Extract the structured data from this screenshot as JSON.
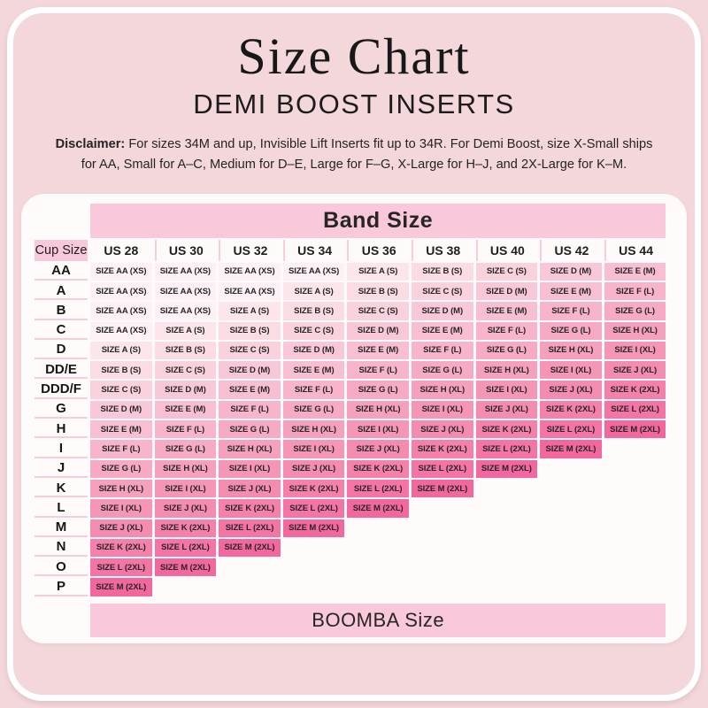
{
  "page": {
    "title": "Size Chart",
    "subtitle": "DEMI BOOST INSERTS",
    "disclaimer_label": "Disclaimer:",
    "disclaimer_text": " For sizes 34M and up, Invisible Lift Inserts fit up to 34R. For Demi Boost, size X-Small ships for AA, Small for A–C, Medium for D–E, Large for F–G, X-Large for H–J, and 2X-Large for K–M."
  },
  "table": {
    "band_header": "Band Size",
    "corner_header": "Cup Size",
    "footer": "BOOMBA Size",
    "size_labels": {
      "AA": "SIZE AA (XS)",
      "A": "SIZE A (S)",
      "B": "SIZE B (S)",
      "C": "SIZE C (S)",
      "D": "SIZE D (M)",
      "E": "SIZE E (M)",
      "F": "SIZE F (L)",
      "G": "SIZE G (L)",
      "H": "SIZE H (XL)",
      "I": "SIZE I (XL)",
      "J": "SIZE J (XL)",
      "K": "SIZE K (2XL)",
      "L": "SIZE L (2XL)",
      "M": "SIZE M (2XL)"
    },
    "size_colors": {
      "AA": "#fdf1f5",
      "A": "#fce6ec",
      "B": "#fbdce5",
      "C": "#fad2de",
      "D": "#f9c8d8",
      "E": "#f8bed1",
      "F": "#f7b4ca",
      "G": "#f6aac4",
      "H": "#f5a0bd",
      "I": "#f596b7",
      "J": "#f48bb1",
      "K": "#f480ab",
      "L": "#f374a5",
      "M": "#f2689e"
    }
  },
  "colors": {
    "page_background": "#f3d7db",
    "card_background": "#fffbfb",
    "banner_pink": "#f9c8da",
    "frame_white": "#ffffff",
    "text_dark": "#1c1c1c"
  },
  "chart_data": {
    "type": "table",
    "title": "Size Chart — DEMI BOOST INSERTS",
    "columns": [
      "US 28",
      "US 30",
      "US 32",
      "US 34",
      "US 36",
      "US 38",
      "US 40",
      "US 42",
      "US 44"
    ],
    "row_labels": [
      "AA",
      "A",
      "B",
      "C",
      "D",
      "DD/E",
      "DDD/F",
      "G",
      "H",
      "I",
      "J",
      "K",
      "L",
      "M",
      "N",
      "O",
      "P"
    ],
    "matrix": [
      [
        "AA",
        "AA",
        "AA",
        "AA",
        "A",
        "B",
        "C",
        "D",
        "E"
      ],
      [
        "AA",
        "AA",
        "AA",
        "A",
        "B",
        "C",
        "D",
        "E",
        "F"
      ],
      [
        "AA",
        "AA",
        "A",
        "B",
        "C",
        "D",
        "E",
        "F",
        "G"
      ],
      [
        "AA",
        "A",
        "B",
        "C",
        "D",
        "E",
        "F",
        "G",
        "H"
      ],
      [
        "A",
        "B",
        "C",
        "D",
        "E",
        "F",
        "G",
        "H",
        "I"
      ],
      [
        "B",
        "C",
        "D",
        "E",
        "F",
        "G",
        "H",
        "I",
        "J"
      ],
      [
        "C",
        "D",
        "E",
        "F",
        "G",
        "H",
        "I",
        "J",
        "K"
      ],
      [
        "D",
        "E",
        "F",
        "G",
        "H",
        "I",
        "J",
        "K",
        "L"
      ],
      [
        "E",
        "F",
        "G",
        "H",
        "I",
        "J",
        "K",
        "L",
        "M"
      ],
      [
        "F",
        "G",
        "H",
        "I",
        "J",
        "K",
        "L",
        "M"
      ],
      [
        "G",
        "H",
        "I",
        "J",
        "K",
        "L",
        "M"
      ],
      [
        "H",
        "I",
        "J",
        "K",
        "L",
        "M"
      ],
      [
        "I",
        "J",
        "K",
        "L",
        "M"
      ],
      [
        "J",
        "K",
        "L",
        "M"
      ],
      [
        "K",
        "L",
        "M"
      ],
      [
        "L",
        "M"
      ],
      [
        "M"
      ]
    ]
  }
}
